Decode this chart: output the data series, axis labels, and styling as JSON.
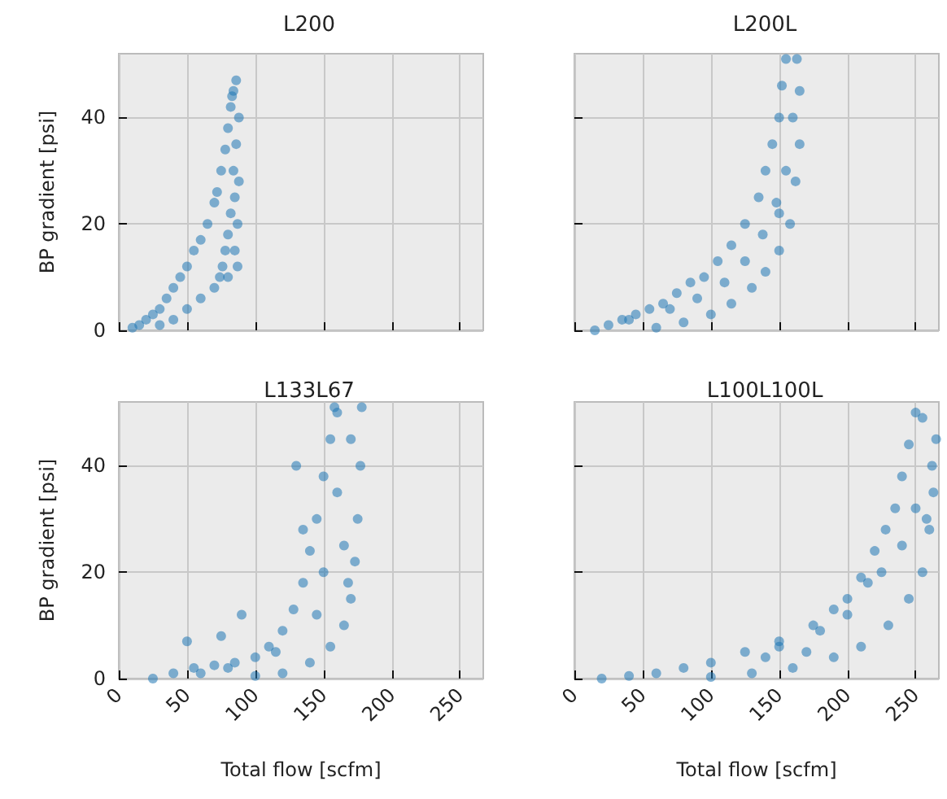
{
  "chart_data": [
    {
      "type": "scatter",
      "title": "L200",
      "ylabel": "BP gradient [psi]",
      "color": "#1f77b4",
      "marker": "circle",
      "grid": true,
      "tick_labels": "y",
      "xlim": [
        0,
        267
      ],
      "ylim": [
        0,
        52
      ],
      "xticks": [
        0,
        50,
        100,
        150,
        200,
        250
      ],
      "yticks": [
        0,
        20,
        40
      ],
      "x": [
        10,
        15,
        20,
        25,
        30,
        35,
        40,
        45,
        50,
        55,
        60,
        65,
        70,
        72,
        75,
        78,
        80,
        82,
        84,
        86,
        88,
        86,
        84,
        82,
        80,
        78,
        76,
        74,
        30,
        40,
        50,
        60,
        70,
        80,
        85,
        87,
        88,
        85,
        83,
        87
      ],
      "values": [
        0.5,
        1,
        2,
        3,
        4,
        6,
        8,
        10,
        12,
        15,
        17,
        20,
        24,
        26,
        30,
        34,
        38,
        42,
        45,
        47,
        40,
        35,
        30,
        22,
        18,
        15,
        12,
        10,
        1,
        2,
        4,
        6,
        8,
        10,
        15,
        20,
        28,
        25,
        44,
        12
      ]
    },
    {
      "type": "scatter",
      "title": "L200L",
      "color": "#1f77b4",
      "marker": "circle",
      "grid": true,
      "tick_labels": false,
      "xlim": [
        0,
        267
      ],
      "ylim": [
        0,
        52
      ],
      "xticks": [
        0,
        50,
        100,
        150,
        200,
        250
      ],
      "yticks": [
        0,
        20,
        40
      ],
      "x": [
        15,
        25,
        35,
        45,
        55,
        65,
        75,
        85,
        95,
        105,
        115,
        125,
        135,
        140,
        145,
        150,
        152,
        155,
        60,
        80,
        100,
        115,
        130,
        140,
        150,
        158,
        162,
        165,
        165,
        163,
        40,
        70,
        90,
        110,
        125,
        138,
        148,
        155,
        160,
        150
      ],
      "values": [
        0,
        1,
        2,
        3,
        4,
        5,
        7,
        9,
        10,
        13,
        16,
        20,
        25,
        30,
        35,
        40,
        46,
        51,
        0.5,
        1.5,
        3,
        5,
        8,
        11,
        15,
        20,
        28,
        35,
        45,
        51,
        2,
        4,
        6,
        9,
        13,
        18,
        24,
        30,
        40,
        22
      ]
    },
    {
      "type": "scatter",
      "title": "L133L67",
      "xlabel": "Total flow [scfm]",
      "ylabel": "BP gradient [psi]",
      "color": "#1f77b4",
      "marker": "circle",
      "grid": true,
      "xlim": [
        0,
        267
      ],
      "ylim": [
        0,
        52
      ],
      "xticks": [
        0,
        50,
        100,
        150,
        200,
        250
      ],
      "yticks": [
        0,
        20,
        40
      ],
      "x": [
        25,
        40,
        55,
        70,
        85,
        100,
        110,
        120,
        128,
        135,
        140,
        145,
        150,
        155,
        158,
        100,
        120,
        140,
        155,
        165,
        170,
        173,
        175,
        177,
        178,
        60,
        80,
        50,
        90,
        75,
        130,
        150,
        160,
        165,
        170,
        115,
        145,
        135,
        160,
        168
      ],
      "values": [
        0,
        1,
        2,
        2.5,
        3,
        4,
        6,
        9,
        13,
        18,
        24,
        30,
        38,
        45,
        51,
        0.5,
        1,
        3,
        6,
        10,
        15,
        22,
        30,
        40,
        51,
        1,
        2,
        7,
        12,
        8,
        40,
        20,
        35,
        25,
        45,
        5,
        12,
        28,
        50,
        18
      ]
    },
    {
      "type": "scatter",
      "title": "L100L100L",
      "xlabel": "Total flow [scfm]",
      "color": "#1f77b4",
      "marker": "circle",
      "grid": true,
      "tick_labels": "x",
      "xlim": [
        0,
        267
      ],
      "ylim": [
        0,
        52
      ],
      "xticks": [
        0,
        50,
        100,
        150,
        200,
        250
      ],
      "yticks": [
        0,
        20,
        40
      ],
      "x": [
        20,
        40,
        60,
        80,
        100,
        125,
        150,
        175,
        190,
        200,
        210,
        220,
        228,
        235,
        240,
        245,
        250,
        100,
        130,
        160,
        190,
        210,
        230,
        245,
        255,
        260,
        263,
        265,
        255,
        262,
        150,
        180,
        200,
        215,
        240,
        250,
        170,
        225,
        140,
        258
      ],
      "values": [
        0,
        0.5,
        1,
        2,
        3,
        5,
        7,
        10,
        13,
        15,
        19,
        24,
        28,
        32,
        38,
        44,
        50,
        0.3,
        1,
        2,
        4,
        6,
        10,
        15,
        20,
        28,
        35,
        45,
        49,
        40,
        6,
        9,
        12,
        18,
        25,
        32,
        5,
        20,
        4,
        30
      ]
    }
  ]
}
